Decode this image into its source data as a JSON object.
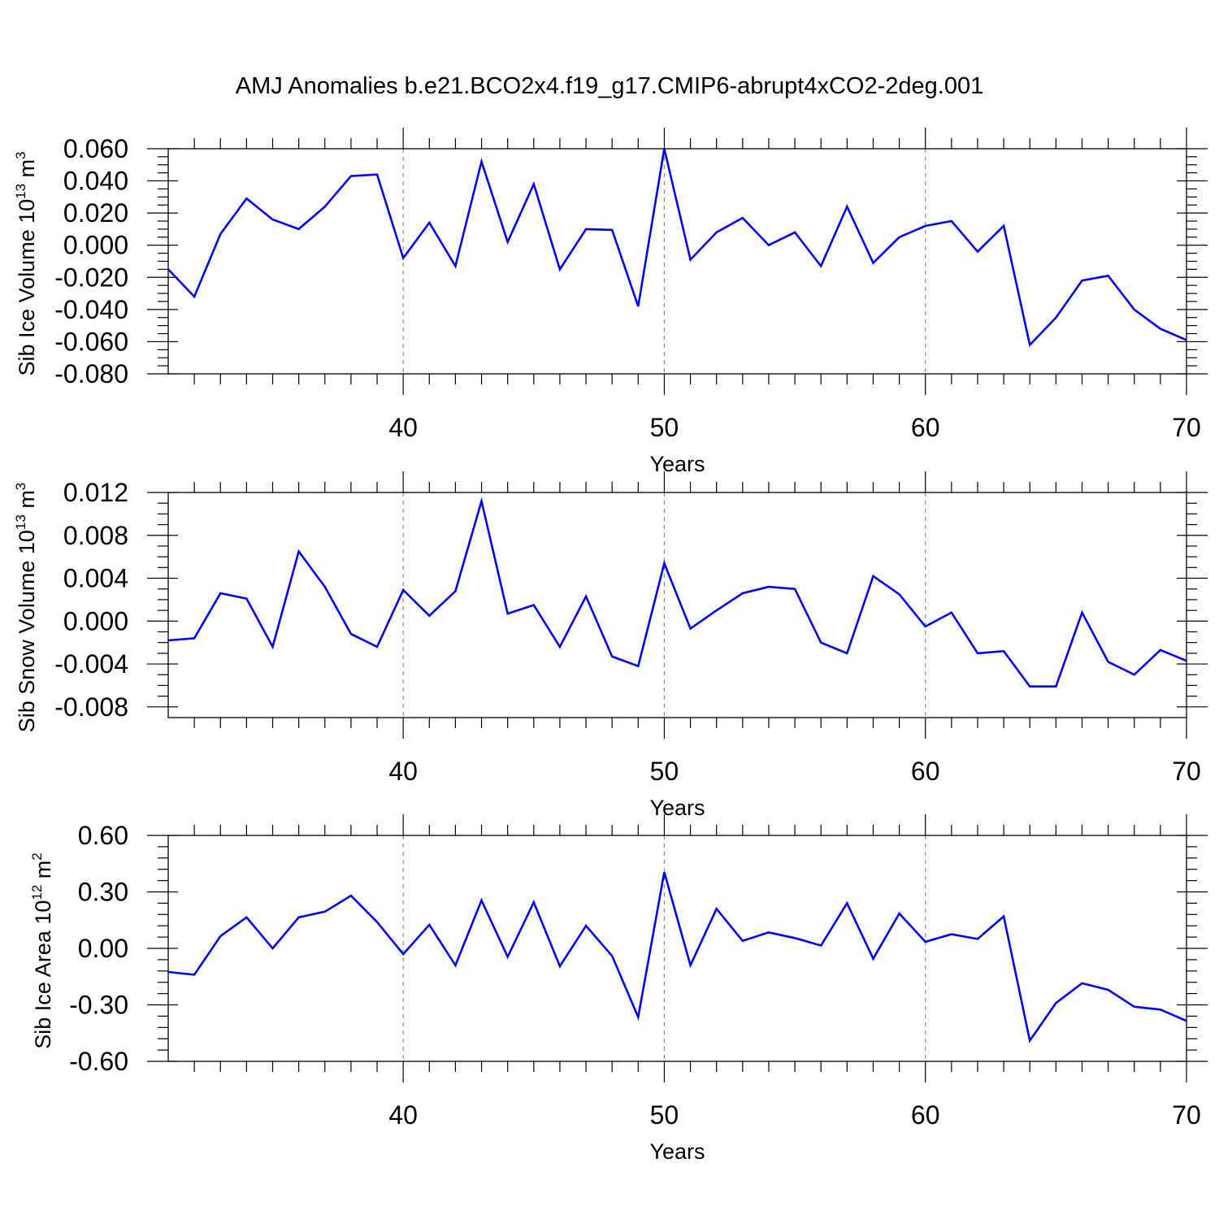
{
  "title": "AMJ Anomalies b.e21.BCO2x4.f19_g17.CMIP6-abrupt4xCO2-2deg.001",
  "colors": {
    "line": "#0000ff",
    "grid": "#888888"
  },
  "chart_data": [
    {
      "type": "line",
      "title": "",
      "xlabel": "Years",
      "ylabel_parts": {
        "text": "Sib Ice Volume 10",
        "sup1": "13",
        "mid": " m",
        "sup2": "3"
      },
      "xlim": [
        31,
        70
      ],
      "ylim": [
        -0.08,
        0.06
      ],
      "xticks": [
        40,
        50,
        60,
        70
      ],
      "yticks": [
        -0.08,
        -0.06,
        -0.04,
        -0.02,
        0.0,
        0.02,
        0.04,
        0.06
      ],
      "ytick_labels": [
        "-0.080",
        "-0.060",
        "-0.040",
        "-0.020",
        "0.000",
        "0.020",
        "0.040",
        "0.060"
      ],
      "x": [
        31,
        32,
        33,
        34,
        35,
        36,
        37,
        38,
        39,
        40,
        41,
        42,
        43,
        44,
        45,
        46,
        47,
        48,
        49,
        50,
        51,
        52,
        53,
        54,
        55,
        56,
        57,
        58,
        59,
        60,
        61,
        62,
        63,
        64,
        65,
        66,
        67,
        68,
        69,
        70
      ],
      "values": [
        -0.015,
        -0.032,
        0.007,
        0.029,
        0.016,
        0.01,
        0.024,
        0.043,
        0.044,
        -0.008,
        0.014,
        -0.013,
        0.052,
        0.002,
        0.038,
        -0.015,
        0.01,
        0.0095,
        -0.038,
        0.06,
        -0.009,
        0.008,
        0.017,
        0.0,
        0.008,
        -0.013,
        0.024,
        -0.011,
        0.005,
        0.012,
        0.015,
        -0.004,
        0.012,
        -0.062,
        -0.045,
        -0.022,
        -0.019,
        -0.04,
        -0.052,
        -0.059
      ]
    },
    {
      "type": "line",
      "title": "",
      "xlabel": "Years",
      "ylabel_parts": {
        "text": "Sib Snow Volume 10",
        "sup1": "13",
        "mid": " m",
        "sup2": "3"
      },
      "xlim": [
        31,
        70
      ],
      "ylim": [
        -0.009,
        0.012
      ],
      "xticks": [
        40,
        50,
        60,
        70
      ],
      "yticks": [
        -0.008,
        -0.004,
        0.0,
        0.004,
        0.008,
        0.012
      ],
      "ytick_labels": [
        "-0.008",
        "-0.004",
        "0.000",
        "0.004",
        "0.008",
        "0.012"
      ],
      "x": [
        31,
        32,
        33,
        34,
        35,
        36,
        37,
        38,
        39,
        40,
        41,
        42,
        43,
        44,
        45,
        46,
        47,
        48,
        49,
        50,
        51,
        52,
        53,
        54,
        55,
        56,
        57,
        58,
        59,
        60,
        61,
        62,
        63,
        64,
        65,
        66,
        67,
        68,
        69,
        70
      ],
      "values": [
        -0.0018,
        -0.0016,
        0.0026,
        0.0021,
        -0.0024,
        0.0065,
        0.0032,
        -0.0012,
        -0.0024,
        0.0029,
        0.0005,
        0.0028,
        0.0112,
        0.0007,
        0.0015,
        -0.0024,
        0.0023,
        -0.0033,
        -0.0042,
        0.0054,
        -0.0007,
        0.001,
        0.0026,
        0.0032,
        0.003,
        -0.002,
        -0.003,
        0.0042,
        0.0025,
        -0.0005,
        0.0008,
        -0.003,
        -0.0028,
        -0.0061,
        -0.0061,
        0.0008,
        -0.0038,
        -0.005,
        -0.0027,
        -0.0037
      ]
    },
    {
      "type": "line",
      "title": "",
      "xlabel": "Years",
      "ylabel_parts": {
        "text": "Sib Ice Area 10",
        "sup1": "12",
        "mid": " m",
        "sup2": "2"
      },
      "xlim": [
        31,
        70
      ],
      "ylim": [
        -0.6,
        0.6
      ],
      "xticks": [
        40,
        50,
        60,
        70
      ],
      "yticks": [
        -0.6,
        -0.3,
        0.0,
        0.3,
        0.6
      ],
      "ytick_labels": [
        "-0.60",
        "-0.30",
        "0.00",
        "0.30",
        "0.60"
      ],
      "x": [
        31,
        32,
        33,
        34,
        35,
        36,
        37,
        38,
        39,
        40,
        41,
        42,
        43,
        44,
        45,
        46,
        47,
        48,
        49,
        50,
        51,
        52,
        53,
        54,
        55,
        56,
        57,
        58,
        59,
        60,
        61,
        62,
        63,
        64,
        65,
        66,
        67,
        68,
        69,
        70
      ],
      "values": [
        -0.125,
        -0.14,
        0.065,
        0.165,
        0.0,
        0.165,
        0.195,
        0.28,
        0.14,
        -0.03,
        0.125,
        -0.09,
        0.255,
        -0.045,
        0.245,
        -0.095,
        0.12,
        -0.04,
        -0.365,
        0.405,
        -0.09,
        0.21,
        0.04,
        0.085,
        0.055,
        0.015,
        0.24,
        -0.055,
        0.185,
        0.035,
        0.075,
        0.05,
        0.17,
        -0.49,
        -0.29,
        -0.185,
        -0.22,
        -0.31,
        -0.325,
        -0.385
      ]
    }
  ]
}
